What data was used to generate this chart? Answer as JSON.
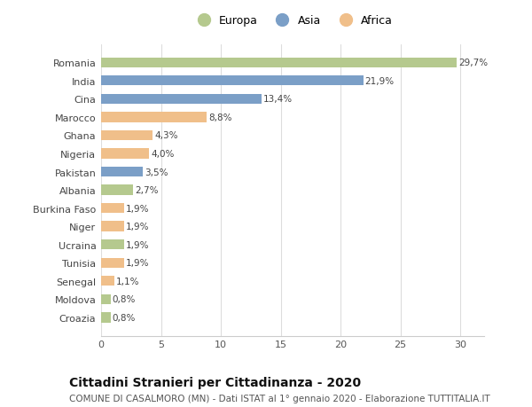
{
  "categories": [
    "Croazia",
    "Moldova",
    "Senegal",
    "Tunisia",
    "Ucraina",
    "Niger",
    "Burkina Faso",
    "Albania",
    "Pakistan",
    "Nigeria",
    "Ghana",
    "Marocco",
    "Cina",
    "India",
    "Romania"
  ],
  "values": [
    0.8,
    0.8,
    1.1,
    1.9,
    1.9,
    1.9,
    1.9,
    2.7,
    3.5,
    4.0,
    4.3,
    8.8,
    13.4,
    21.9,
    29.7
  ],
  "labels": [
    "0,8%",
    "0,8%",
    "1,1%",
    "1,9%",
    "1,9%",
    "1,9%",
    "1,9%",
    "2,7%",
    "3,5%",
    "4,0%",
    "4,3%",
    "8,8%",
    "13,4%",
    "21,9%",
    "29,7%"
  ],
  "continents": [
    "Europa",
    "Europa",
    "Africa",
    "Africa",
    "Europa",
    "Africa",
    "Africa",
    "Europa",
    "Asia",
    "Africa",
    "Africa",
    "Africa",
    "Asia",
    "Asia",
    "Europa"
  ],
  "colors": {
    "Europa": "#b5c98e",
    "Asia": "#7b9fc7",
    "Africa": "#f0bf8a"
  },
  "title": "Cittadini Stranieri per Cittadinanza - 2020",
  "subtitle": "COMUNE DI CASALMORO (MN) - Dati ISTAT al 1° gennaio 2020 - Elaborazione TUTTITALIA.IT",
  "xlim": [
    0,
    32
  ],
  "xticks": [
    0,
    5,
    10,
    15,
    20,
    25,
    30
  ],
  "background_color": "#ffffff",
  "grid_color": "#dddddd",
  "bar_height": 0.55,
  "label_fontsize": 7.5,
  "ytick_fontsize": 8,
  "xtick_fontsize": 8,
  "title_fontsize": 10,
  "subtitle_fontsize": 7.5
}
